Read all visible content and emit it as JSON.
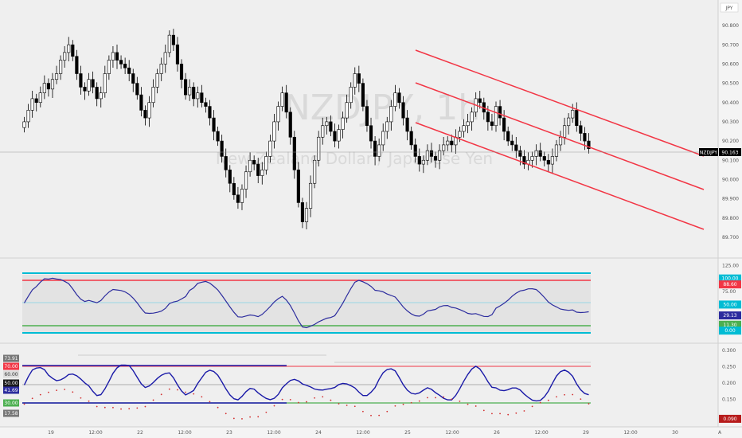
{
  "watermark": {
    "symbol": "NZDJPY, 1h",
    "name": "New Zealand Dollar / Japanese Yen"
  },
  "currency_label": "JPY",
  "last_price_label": {
    "symbol": "NZDJPY",
    "price": "90.163"
  },
  "chart_data": [
    {
      "type": "candlestick",
      "panel": "price",
      "x_ticks": [
        "19",
        "12:00",
        "22",
        "12:00",
        "23",
        "12:00",
        "24",
        "12:00",
        "25",
        "12:00",
        "26",
        "12:00",
        "29",
        "12:00",
        "30",
        "A"
      ],
      "y_ticks": [
        "90.800",
        "90.700",
        "90.600",
        "90.500",
        "90.400",
        "90.300",
        "90.200",
        "90.100",
        "90.000",
        "89.900",
        "89.800",
        "89.700"
      ],
      "ylim": [
        89.65,
        90.85
      ],
      "close_approx": [
        90.3,
        90.36,
        90.42,
        90.4,
        90.45,
        90.5,
        90.47,
        90.52,
        90.55,
        90.62,
        90.66,
        90.7,
        90.64,
        90.55,
        90.48,
        90.46,
        90.52,
        90.48,
        90.42,
        90.45,
        90.55,
        90.62,
        90.66,
        90.62,
        90.6,
        90.58,
        90.55,
        90.5,
        90.44,
        90.36,
        90.32,
        90.4,
        90.48,
        90.55,
        90.6,
        90.66,
        90.75,
        90.7,
        90.6,
        90.52,
        90.44,
        90.48,
        90.42,
        90.45,
        90.4,
        90.38,
        90.32,
        90.25,
        90.2,
        90.12,
        90.05,
        89.98,
        89.92,
        89.88,
        89.95,
        90.04,
        90.1,
        90.08,
        90.02,
        90.05,
        90.12,
        90.2,
        90.3,
        90.38,
        90.45,
        90.35,
        90.22,
        90.05,
        89.88,
        89.78,
        89.85,
        89.98,
        90.1,
        90.22,
        90.28,
        90.3,
        90.25,
        90.2,
        90.26,
        90.32,
        90.4,
        90.48,
        90.55,
        90.5,
        90.38,
        90.28,
        90.2,
        90.12,
        90.18,
        90.25,
        90.3,
        90.38,
        90.45,
        90.4,
        90.32,
        90.25,
        90.18,
        90.12,
        90.08,
        90.1,
        90.15,
        90.12,
        90.1,
        90.15,
        90.18,
        90.2,
        90.18,
        90.22,
        90.25,
        90.28,
        90.3,
        90.35,
        90.42,
        90.4,
        90.35,
        90.3,
        90.28,
        90.38,
        90.32,
        90.25,
        90.2,
        90.18,
        90.15,
        90.12,
        90.08,
        90.1,
        90.12,
        90.15,
        90.12,
        90.1,
        90.08,
        90.12,
        90.18,
        90.22,
        90.28,
        90.32,
        90.36,
        90.28,
        90.24,
        90.2,
        90.16
      ],
      "last": 90.163
    },
    {
      "type": "line",
      "panel": "oscillator",
      "name": "Oscillator",
      "y_ticks": [
        "125.00",
        "75.00",
        "25.00"
      ],
      "levels": [
        {
          "label": "100.00",
          "color": "#00bcd4"
        },
        {
          "label": "88.60",
          "color": "#f23645"
        },
        {
          "label": "50.00",
          "color": "#00bcd4"
        },
        {
          "label": "11.30",
          "color": "#4caf50"
        },
        {
          "label": "0.00",
          "color": "#00bcd4"
        }
      ],
      "current": "29.13",
      "ylim": [
        -15,
        130
      ]
    },
    {
      "type": "line",
      "panel": "indicator",
      "name": "Indicator",
      "y_ticks": [
        "0.300",
        "0.250",
        "0.200",
        "0.150"
      ],
      "left_labels": [
        "73.91",
        "70.00",
        "60.00",
        "50.00",
        "41.69",
        "30.00",
        "17.58"
      ],
      "right_labels": [
        "0.090"
      ],
      "ylim": [
        0.08,
        0.31
      ]
    }
  ],
  "colors": {
    "channel": "#f23645",
    "osc_line": "#2c2c9e",
    "bull": "#ffffff",
    "bear": "#000000",
    "dots": "#d32f2f"
  }
}
